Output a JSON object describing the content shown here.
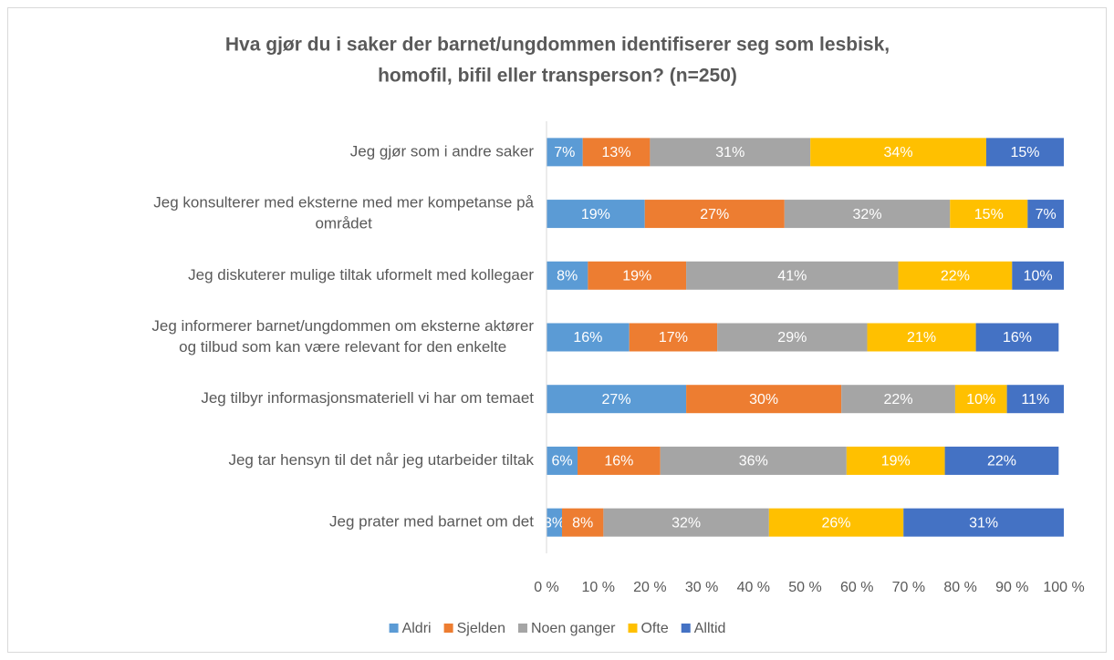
{
  "chart_data": {
    "type": "stacked-bar-horizontal",
    "title": [
      "Hva gjør du i saker der barnet/ungdommen identifiserer seg som lesbisk,",
      "homofil, bifil eller transperson? (n=250)"
    ],
    "categories": [
      [
        "Jeg gjør som i andre saker"
      ],
      [
        "Jeg konsulterer med eksterne med mer kompetanse på",
        "området"
      ],
      [
        "Jeg diskuterer mulige tiltak uformelt med kollegaer"
      ],
      [
        "Jeg informerer barnet/ungdommen om eksterne aktører",
        "og tilbud som kan være relevant for den enkelte"
      ],
      [
        "Jeg tilbyr informasjonsmateriell vi har om temaet"
      ],
      [
        "Jeg tar hensyn til det når jeg utarbeider tiltak"
      ],
      [
        "Jeg prater med barnet om det"
      ]
    ],
    "series": [
      {
        "name": "Aldri",
        "color": "#5b9bd5",
        "values": [
          7,
          19,
          8,
          16,
          27,
          6,
          3
        ],
        "value_labels": [
          "7%",
          "19%",
          "8%",
          "16%",
          "27%",
          "6%",
          "3%"
        ]
      },
      {
        "name": "Sjelden",
        "color": "#ed7d31",
        "values": [
          13,
          27,
          19,
          17,
          30,
          16,
          8
        ],
        "value_labels": [
          "13%",
          "27%",
          "19%",
          "17%",
          "30%",
          "16%",
          "8%"
        ]
      },
      {
        "name": "Noen ganger",
        "color": "#a5a5a5",
        "values": [
          31,
          32,
          41,
          29,
          22,
          36,
          32
        ],
        "value_labels": [
          "31%",
          "32%",
          "41%",
          "29%",
          "22%",
          "36%",
          "32%"
        ]
      },
      {
        "name": "Ofte",
        "color": "#ffc000",
        "values": [
          34,
          15,
          22,
          21,
          10,
          19,
          26
        ],
        "value_labels": [
          "34%",
          "15%",
          "22%",
          "21%",
          "10%",
          "19%",
          "26%"
        ]
      },
      {
        "name": "Alltid",
        "color": "#4472c4",
        "values": [
          15,
          7,
          10,
          16,
          11,
          22,
          31
        ],
        "value_labels": [
          "15%",
          "7%",
          "10%",
          "16%",
          "11%",
          "22%",
          "31%"
        ]
      }
    ],
    "xlim": [
      0,
      100
    ],
    "xticks": [
      {
        "value": 0,
        "label": "0 %"
      },
      {
        "value": 10,
        "label": "10 %"
      },
      {
        "value": 20,
        "label": "20 %"
      },
      {
        "value": 30,
        "label": "30 %"
      },
      {
        "value": 40,
        "label": "40 %"
      },
      {
        "value": 50,
        "label": "50 %"
      },
      {
        "value": 60,
        "label": "60 %"
      },
      {
        "value": 70,
        "label": "70 %"
      },
      {
        "value": 80,
        "label": "80 %"
      },
      {
        "value": 90,
        "label": "90 %"
      },
      {
        "value": 100,
        "label": "100 %"
      }
    ],
    "grid": false,
    "legend": "bottom"
  }
}
